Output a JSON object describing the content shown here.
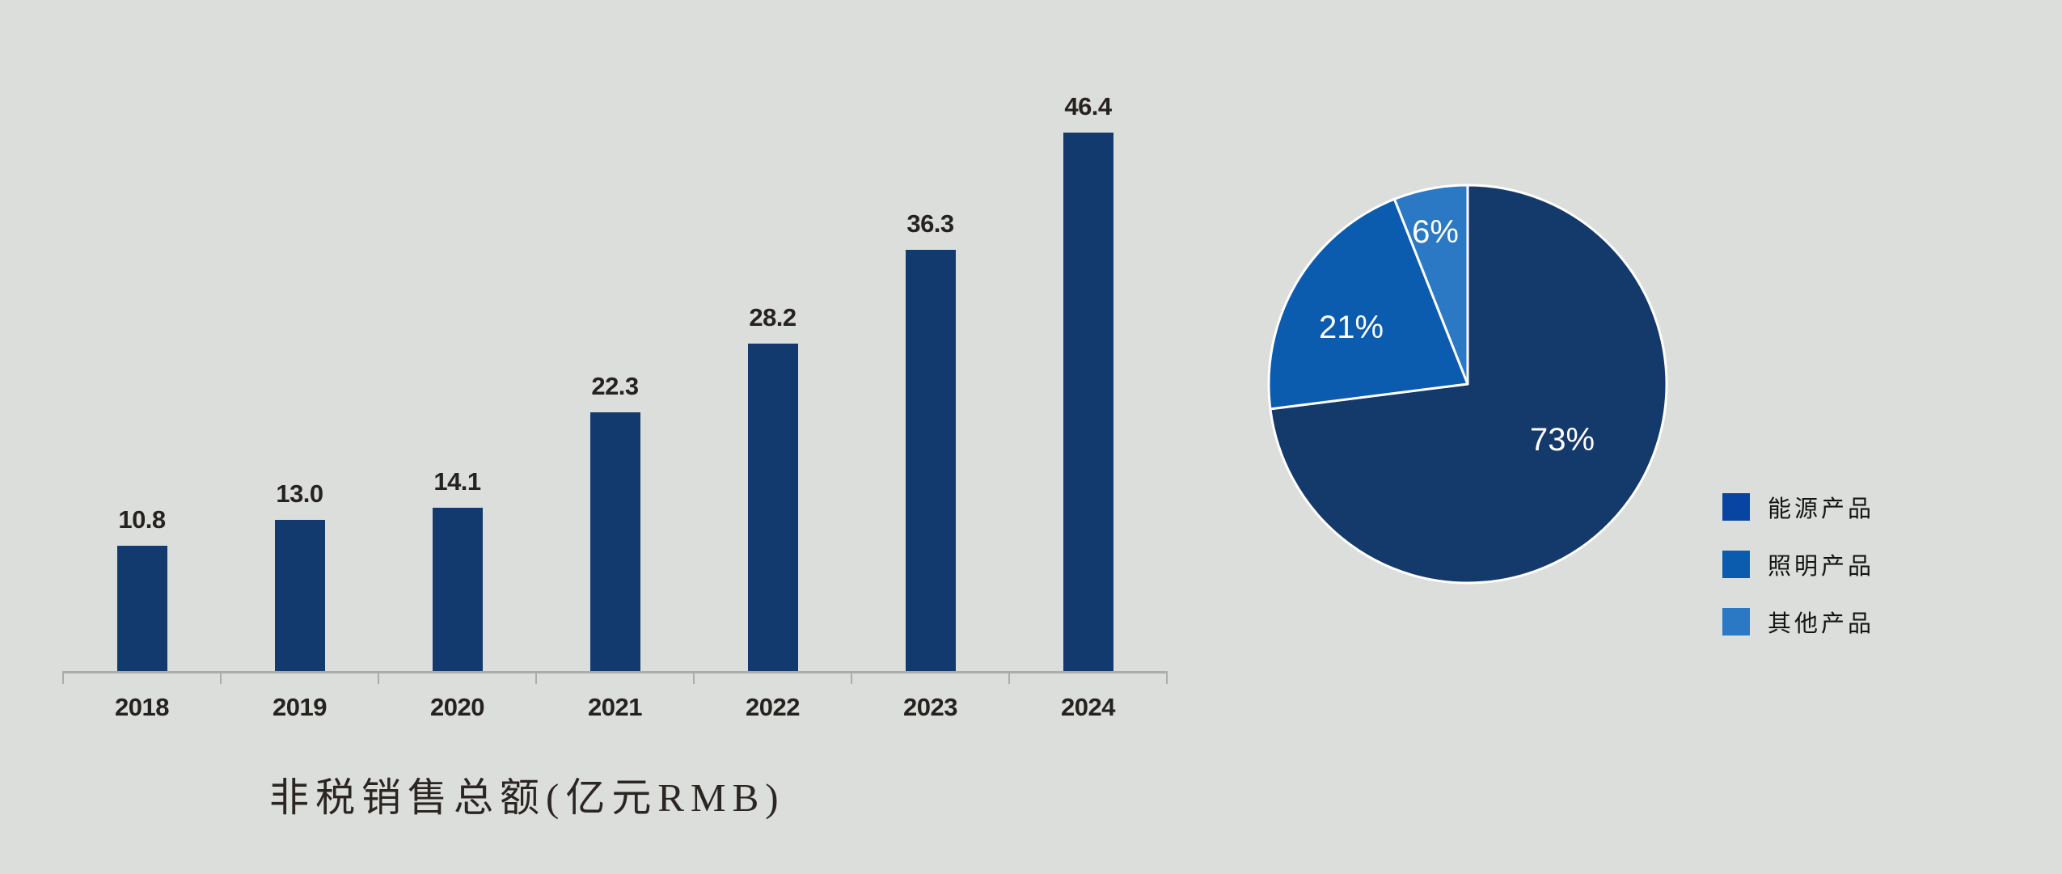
{
  "page": {
    "background_color": "#dcdedc"
  },
  "chart_data": [
    {
      "type": "bar",
      "title": "非税销售总额(亿元RMB)",
      "categories": [
        "2018",
        "2019",
        "2020",
        "2021",
        "2022",
        "2023",
        "2024"
      ],
      "values": [
        10.8,
        13.0,
        14.1,
        22.3,
        28.2,
        36.3,
        46.4
      ],
      "value_labels": [
        "10.8",
        "13.0",
        "14.1",
        "22.3",
        "28.2",
        "36.3",
        "46.4"
      ],
      "xlabel": "",
      "ylabel": "",
      "ylim": [
        0,
        50
      ],
      "grid": false,
      "data_labels": true,
      "bar_color": "#123A6E",
      "label_color": "#262220",
      "axis_color": "#acacac",
      "legend_position": "none"
    },
    {
      "type": "pie",
      "labels": [
        "能源产品",
        "照明产品",
        "其他产品"
      ],
      "values": [
        73,
        21,
        6
      ],
      "value_labels": [
        "73%",
        "21%",
        "6%"
      ],
      "colors": [
        "#14396B",
        "#0B5BAF",
        "#2B79C5"
      ],
      "legend_colors": [
        "#0845A3",
        "#0B5BAF",
        "#2B79C5"
      ],
      "slice_label_color": "#ffffff",
      "slice_border_color": "#ffffff",
      "start_angle_deg": 0,
      "direction": "clockwise",
      "legend_position": "right"
    }
  ]
}
